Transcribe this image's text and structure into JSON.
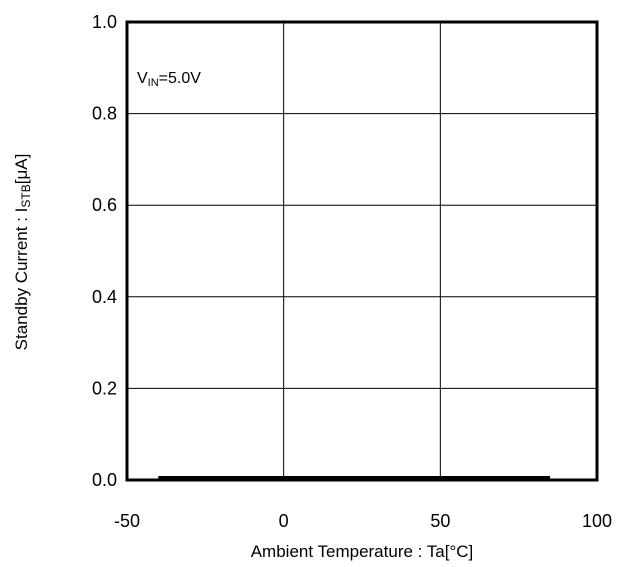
{
  "chart_data": {
    "type": "line",
    "xlabel": "Ambient Temperature : Ta[°C]",
    "ylabel": {
      "prefix": "Standby Current : I",
      "sub": "STB",
      "suffix": "[μA]"
    },
    "annotation": {
      "main": "V",
      "sub": "IN",
      "rest": "=5.0V"
    },
    "xlim": [
      -50,
      100
    ],
    "ylim": [
      0.0,
      1.0
    ],
    "x_ticks": [
      -50,
      0,
      50,
      100
    ],
    "x_tick_labels": [
      "-50",
      "0",
      "50",
      "100"
    ],
    "y_ticks": [
      0.0,
      0.2,
      0.4,
      0.6,
      0.8,
      1.0
    ],
    "y_tick_labels": [
      "0.0",
      "0.2",
      "0.4",
      "0.6",
      "0.8",
      "1.0"
    ],
    "grid": true,
    "series": [
      {
        "x": [
          -40,
          85
        ],
        "y": [
          0.0,
          0.0
        ],
        "color": "#000000"
      }
    ]
  }
}
